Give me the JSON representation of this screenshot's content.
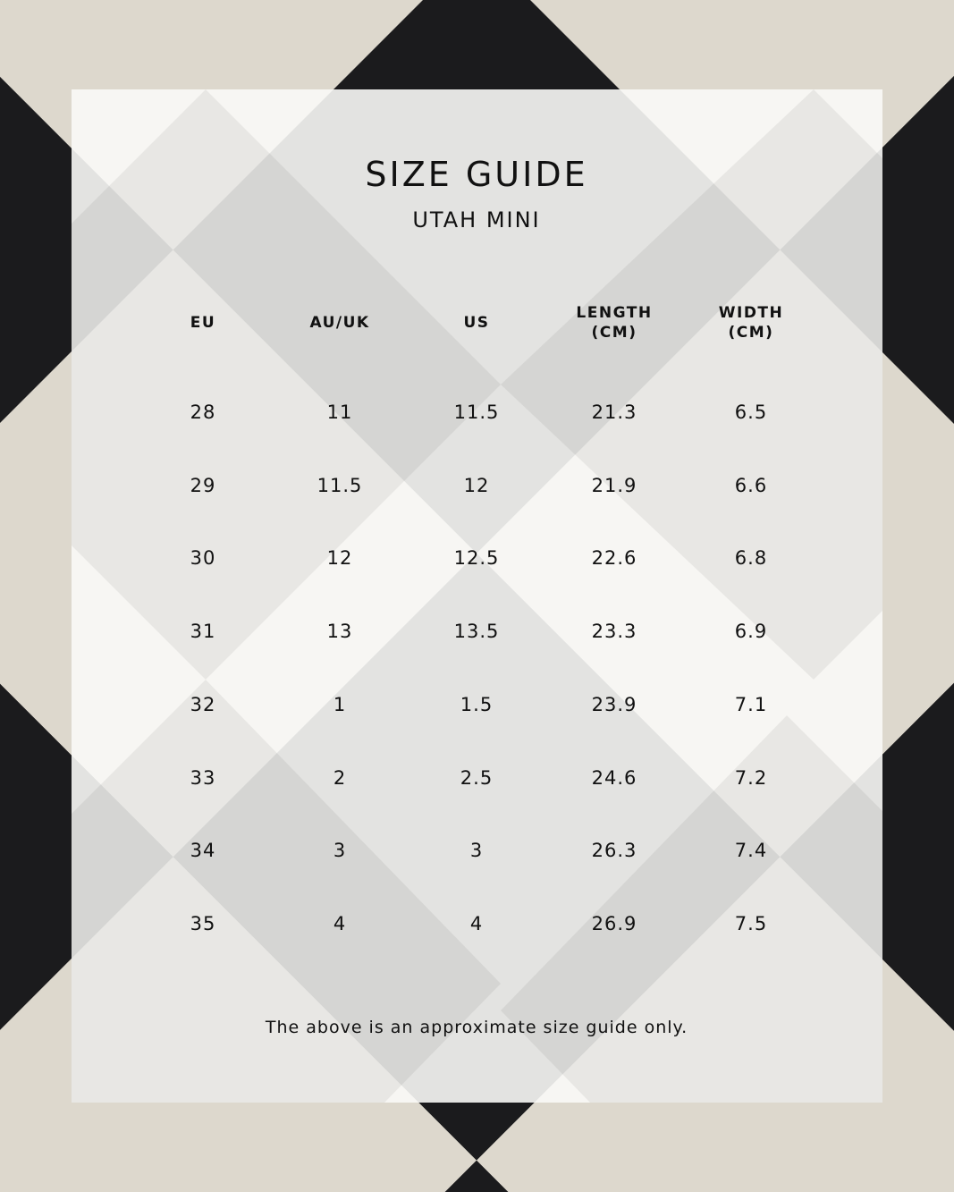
{
  "title": "SIZE GUIDE",
  "subtitle": "UTAH MINI",
  "headers": [
    [
      "EU",
      ""
    ],
    [
      "AU/UK",
      ""
    ],
    [
      "US",
      ""
    ],
    [
      "LENGTH",
      "(CM)"
    ],
    [
      "WIDTH",
      "(CM)"
    ]
  ],
  "rows": [
    [
      "28",
      "11",
      "11.5",
      "21.3",
      "6.5"
    ],
    [
      "29",
      "11.5",
      "12",
      "21.9",
      "6.6"
    ],
    [
      "30",
      "12",
      "12.5",
      "22.6",
      "6.8"
    ],
    [
      "31",
      "13",
      "13.5",
      "23.3",
      "6.9"
    ],
    [
      "32",
      "1",
      "1.5",
      "23.9",
      "7.1"
    ],
    [
      "33",
      "2",
      "2.5",
      "24.6",
      "7.2"
    ],
    [
      "34",
      "3",
      "3",
      "26.3",
      "7.4"
    ],
    [
      "35",
      "4",
      "4",
      "26.9",
      "7.5"
    ]
  ],
  "footnote": "The above is an approximate size guide only."
}
